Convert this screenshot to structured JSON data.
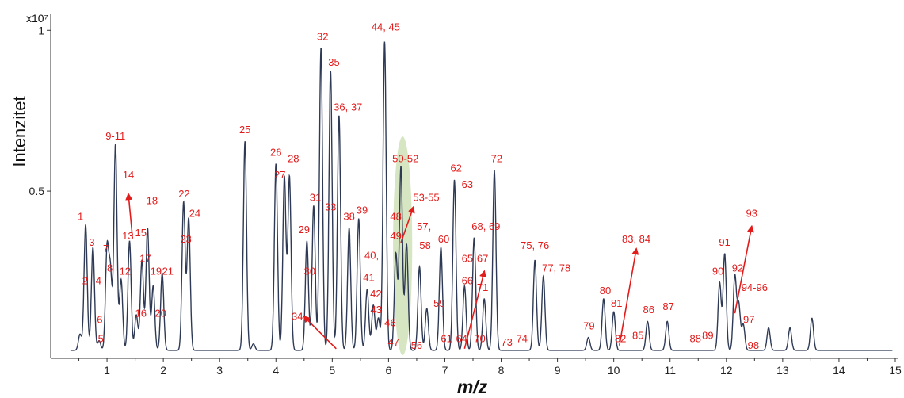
{
  "chart_data": {
    "type": "line",
    "title": "",
    "xlabel": "m/z",
    "ylabel": "Intenzitet",
    "scale_label": "x10⁷",
    "xlim": [
      0,
      15
    ],
    "ylim": [
      -0.02,
      1.05
    ],
    "x_ticks": [
      "1",
      "2",
      "3",
      "4",
      "5",
      "6",
      "7",
      "8",
      "9",
      "10",
      "11",
      "12",
      "13",
      "14",
      "15"
    ],
    "y_ticks": [
      {
        "value": 0.5,
        "label": "0.5"
      },
      {
        "value": 1,
        "label": "1"
      }
    ],
    "baseline": 0.005,
    "line_color": "#2e3a55",
    "label_color": "#e21b1b",
    "highlight_color": "#c8dcae",
    "highlight": {
      "x": 6.25,
      "y": 0.33,
      "rx": 0.17,
      "ry": 0.34
    },
    "peaks": [
      {
        "x": 0.52,
        "y": 0.05
      },
      {
        "x": 0.62,
        "y": 0.39
      },
      {
        "x": 0.75,
        "y": 0.32
      },
      {
        "x": 0.86,
        "y": 0.03
      },
      {
        "x": 1.0,
        "y": 0.31
      },
      {
        "x": 1.06,
        "y": 0.24
      },
      {
        "x": 1.15,
        "y": 0.64
      },
      {
        "x": 1.25,
        "y": 0.22
      },
      {
        "x": 1.4,
        "y": 0.34
      },
      {
        "x": 1.52,
        "y": 0.11
      },
      {
        "x": 1.62,
        "y": 0.28
      },
      {
        "x": 1.72,
        "y": 0.38
      },
      {
        "x": 1.82,
        "y": 0.2
      },
      {
        "x": 1.98,
        "y": 0.24
      },
      {
        "x": 2.36,
        "y": 0.46
      },
      {
        "x": 2.45,
        "y": 0.41
      },
      {
        "x": 3.45,
        "y": 0.65
      },
      {
        "x": 3.6,
        "y": 0.02
      },
      {
        "x": 4.0,
        "y": 0.58
      },
      {
        "x": 4.15,
        "y": 0.54
      },
      {
        "x": 4.24,
        "y": 0.54
      },
      {
        "x": 4.55,
        "y": 0.34
      },
      {
        "x": 4.67,
        "y": 0.45
      },
      {
        "x": 4.8,
        "y": 0.94
      },
      {
        "x": 4.97,
        "y": 0.87
      },
      {
        "x": 5.12,
        "y": 0.73
      },
      {
        "x": 5.3,
        "y": 0.38
      },
      {
        "x": 5.47,
        "y": 0.41
      },
      {
        "x": 5.62,
        "y": 0.19
      },
      {
        "x": 5.73,
        "y": 0.14
      },
      {
        "x": 5.82,
        "y": 0.1
      },
      {
        "x": 5.93,
        "y": 0.96
      },
      {
        "x": 6.13,
        "y": 0.3
      },
      {
        "x": 6.22,
        "y": 0.57
      },
      {
        "x": 6.32,
        "y": 0.33
      },
      {
        "x": 6.55,
        "y": 0.26
      },
      {
        "x": 6.68,
        "y": 0.13
      },
      {
        "x": 6.93,
        "y": 0.32
      },
      {
        "x": 7.17,
        "y": 0.53
      },
      {
        "x": 7.35,
        "y": 0.2
      },
      {
        "x": 7.52,
        "y": 0.35
      },
      {
        "x": 7.7,
        "y": 0.16
      },
      {
        "x": 7.88,
        "y": 0.56
      },
      {
        "x": 8.6,
        "y": 0.28
      },
      {
        "x": 8.75,
        "y": 0.23
      },
      {
        "x": 9.55,
        "y": 0.04
      },
      {
        "x": 9.82,
        "y": 0.16
      },
      {
        "x": 10.0,
        "y": 0.12
      },
      {
        "x": 10.6,
        "y": 0.09
      },
      {
        "x": 10.95,
        "y": 0.09
      },
      {
        "x": 11.88,
        "y": 0.21
      },
      {
        "x": 11.97,
        "y": 0.3
      },
      {
        "x": 12.15,
        "y": 0.23
      },
      {
        "x": 12.22,
        "y": 0.14
      },
      {
        "x": 12.3,
        "y": 0.08
      },
      {
        "x": 12.75,
        "y": 0.07
      },
      {
        "x": 13.13,
        "y": 0.07
      },
      {
        "x": 13.52,
        "y": 0.1
      }
    ],
    "annotations": [
      {
        "text": "1",
        "x": 0.53,
        "y": 0.41
      },
      {
        "text": "2",
        "x": 0.61,
        "y": 0.21
      },
      {
        "text": "3",
        "x": 0.73,
        "y": 0.33
      },
      {
        "text": "4",
        "x": 0.85,
        "y": 0.21
      },
      {
        "text": "5",
        "x": 0.89,
        "y": 0.03
      },
      {
        "text": "6",
        "x": 0.87,
        "y": 0.09
      },
      {
        "text": "7",
        "x": 0.98,
        "y": 0.31
      },
      {
        "text": "8",
        "x": 1.05,
        "y": 0.25
      },
      {
        "text": "9-11",
        "x": 1.15,
        "y": 0.66
      },
      {
        "text": "12",
        "x": 1.32,
        "y": 0.24
      },
      {
        "text": "13",
        "x": 1.37,
        "y": 0.35
      },
      {
        "text": "14",
        "x": 1.38,
        "y": 0.54
      },
      {
        "text": "15",
        "x": 1.6,
        "y": 0.36
      },
      {
        "text": "16",
        "x": 1.6,
        "y": 0.11
      },
      {
        "text": "17",
        "x": 1.68,
        "y": 0.28
      },
      {
        "text": "18",
        "x": 1.8,
        "y": 0.46
      },
      {
        "text": "19",
        "x": 1.87,
        "y": 0.24
      },
      {
        "text": "20",
        "x": 1.95,
        "y": 0.11
      },
      {
        "text": "21",
        "x": 2.08,
        "y": 0.24
      },
      {
        "text": "22",
        "x": 2.37,
        "y": 0.48
      },
      {
        "text": "23",
        "x": 2.4,
        "y": 0.34
      },
      {
        "text": "24",
        "x": 2.56,
        "y": 0.42
      },
      {
        "text": "25",
        "x": 3.45,
        "y": 0.68
      },
      {
        "text": "26",
        "x": 4.0,
        "y": 0.61
      },
      {
        "text": "27",
        "x": 4.07,
        "y": 0.54
      },
      {
        "text": "28",
        "x": 4.31,
        "y": 0.59
      },
      {
        "text": "29",
        "x": 4.5,
        "y": 0.37
      },
      {
        "text": "30",
        "x": 4.6,
        "y": 0.24
      },
      {
        "text": "31",
        "x": 4.7,
        "y": 0.47
      },
      {
        "text": "32",
        "x": 4.83,
        "y": 0.97
      },
      {
        "text": "33",
        "x": 4.97,
        "y": 0.44
      },
      {
        "text": "34",
        "x": 4.38,
        "y": 0.1
      },
      {
        "text": "35",
        "x": 5.03,
        "y": 0.89
      },
      {
        "text": "36, 37",
        "x": 5.28,
        "y": 0.75
      },
      {
        "text": "38",
        "x": 5.3,
        "y": 0.41
      },
      {
        "text": "39",
        "x": 5.53,
        "y": 0.43
      },
      {
        "text": "40,",
        "x": 5.7,
        "y": 0.29
      },
      {
        "text": "41",
        "x": 5.65,
        "y": 0.22
      },
      {
        "text": "42,",
        "x": 5.8,
        "y": 0.17
      },
      {
        "text": "43",
        "x": 5.78,
        "y": 0.12
      },
      {
        "text": "44, 45",
        "x": 5.95,
        "y": 1.0
      },
      {
        "text": "46",
        "x": 6.03,
        "y": 0.08
      },
      {
        "text": "47",
        "x": 6.09,
        "y": 0.02
      },
      {
        "text": "48",
        "x": 6.13,
        "y": 0.41
      },
      {
        "text": "49",
        "x": 6.13,
        "y": 0.35
      },
      {
        "text": "50-52",
        "x": 6.3,
        "y": 0.59
      },
      {
        "text": "53-55",
        "x": 6.67,
        "y": 0.47
      },
      {
        "text": "56",
        "x": 6.5,
        "y": 0.01
      },
      {
        "text": "57,",
        "x": 6.63,
        "y": 0.38
      },
      {
        "text": "58",
        "x": 6.65,
        "y": 0.32
      },
      {
        "text": "59",
        "x": 6.9,
        "y": 0.14
      },
      {
        "text": "60",
        "x": 6.98,
        "y": 0.34
      },
      {
        "text": "61",
        "x": 7.03,
        "y": 0.03
      },
      {
        "text": "62",
        "x": 7.2,
        "y": 0.56
      },
      {
        "text": "63",
        "x": 7.4,
        "y": 0.51
      },
      {
        "text": "64",
        "x": 7.3,
        "y": 0.03
      },
      {
        "text": "65",
        "x": 7.4,
        "y": 0.28
      },
      {
        "text": "66",
        "x": 7.4,
        "y": 0.21
      },
      {
        "text": "67",
        "x": 7.67,
        "y": 0.28
      },
      {
        "text": "68, 69",
        "x": 7.73,
        "y": 0.38
      },
      {
        "text": "70",
        "x": 7.62,
        "y": 0.03
      },
      {
        "text": "71",
        "x": 7.67,
        "y": 0.19
      },
      {
        "text": "72",
        "x": 7.92,
        "y": 0.59
      },
      {
        "text": "73",
        "x": 8.1,
        "y": 0.02
      },
      {
        "text": "74",
        "x": 8.37,
        "y": 0.03
      },
      {
        "text": "75, 76",
        "x": 8.6,
        "y": 0.32
      },
      {
        "text": "77, 78",
        "x": 8.98,
        "y": 0.25
      },
      {
        "text": "79",
        "x": 9.56,
        "y": 0.07
      },
      {
        "text": "80",
        "x": 9.85,
        "y": 0.18
      },
      {
        "text": "81",
        "x": 10.05,
        "y": 0.14
      },
      {
        "text": "82",
        "x": 10.12,
        "y": 0.03
      },
      {
        "text": "83, 84",
        "x": 10.4,
        "y": 0.34
      },
      {
        "text": "85",
        "x": 10.43,
        "y": 0.04
      },
      {
        "text": "86",
        "x": 10.62,
        "y": 0.12
      },
      {
        "text": "87",
        "x": 10.97,
        "y": 0.13
      },
      {
        "text": "88",
        "x": 11.45,
        "y": 0.03
      },
      {
        "text": "89",
        "x": 11.67,
        "y": 0.04
      },
      {
        "text": "90",
        "x": 11.85,
        "y": 0.24
      },
      {
        "text": "91",
        "x": 11.97,
        "y": 0.33
      },
      {
        "text": "92",
        "x": 12.2,
        "y": 0.25
      },
      {
        "text": "93",
        "x": 12.45,
        "y": 0.42
      },
      {
        "text": "94-96",
        "x": 12.5,
        "y": 0.19
      },
      {
        "text": "97",
        "x": 12.4,
        "y": 0.09
      },
      {
        "text": "98",
        "x": 12.48,
        "y": 0.01
      }
    ],
    "arrows": [
      {
        "from": [
          1.45,
          0.36
        ],
        "to": [
          1.38,
          0.49
        ]
      },
      {
        "from": [
          5.07,
          0.01
        ],
        "to": [
          4.5,
          0.11
        ]
      },
      {
        "from": [
          6.22,
          0.34
        ],
        "to": [
          6.44,
          0.45
        ]
      },
      {
        "from": [
          7.35,
          0.01
        ],
        "to": [
          7.7,
          0.25
        ]
      },
      {
        "from": [
          10.1,
          0.02
        ],
        "to": [
          10.4,
          0.32
        ]
      },
      {
        "from": [
          12.15,
          0.12
        ],
        "to": [
          12.45,
          0.39
        ]
      }
    ],
    "grid": false,
    "legend": "none"
  }
}
